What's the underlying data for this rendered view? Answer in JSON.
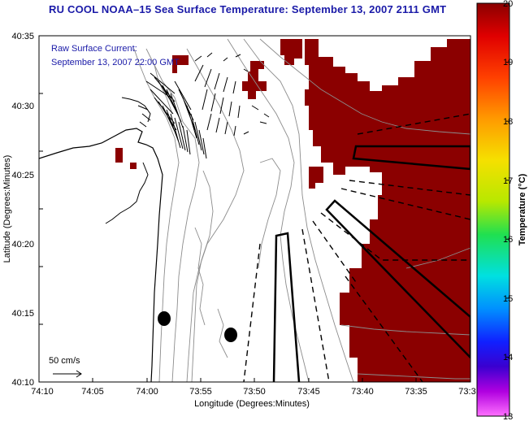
{
  "title": "RU COOL  NOAA–15  Sea Surface Temperature:  September 13, 2007 2111 GMT",
  "current_label_line1": "Raw Surface Current:",
  "current_label_line2": "September 13, 2007 22:00 GMT",
  "scale_label": "50 cm/s",
  "xlabel": "Longitude (Degrees:Minutes)",
  "ylabel": "Latitude (Degrees:Minutes)",
  "x_ticks": [
    "74:10",
    "74:05",
    "74:00",
    "73:55",
    "73:50",
    "73:45",
    "73:40",
    "73:35",
    "73:3"
  ],
  "y_ticks": [
    "40:35",
    "40:30",
    "40:25",
    "40:20",
    "40:15",
    "40:10"
  ],
  "colorbar": {
    "label": "Temperature (°C)",
    "ticks": [
      "20",
      "19",
      "18",
      "17",
      "16",
      "15",
      "14",
      "13"
    ],
    "min": 13,
    "max": 20
  },
  "colors": {
    "warm_sst": "#8b0000",
    "title": "#1a1aa8",
    "contour": "#8c8c8c"
  }
}
